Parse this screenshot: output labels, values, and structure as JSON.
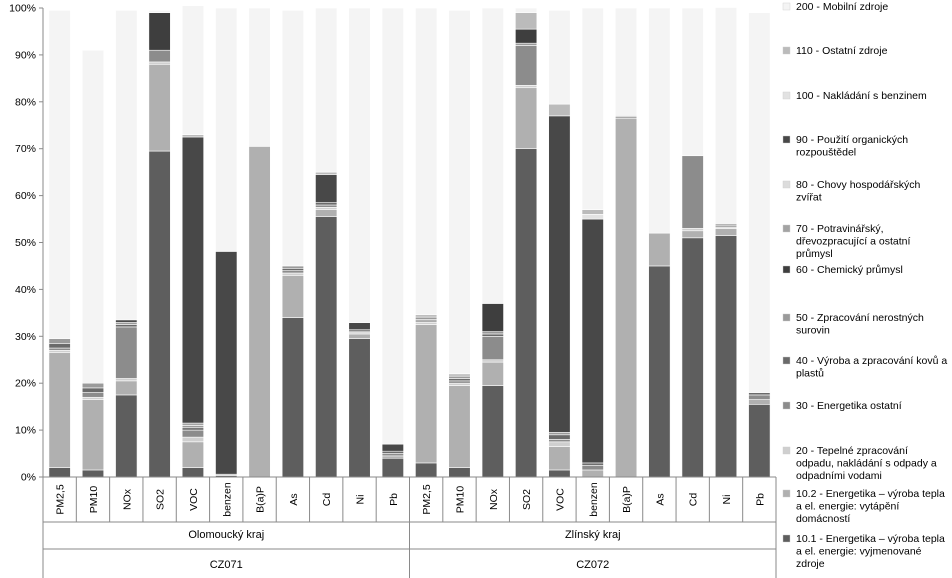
{
  "chart_data": {
    "type": "bar",
    "stacked": true,
    "ylim": [
      0,
      100
    ],
    "y_ticks": [
      "0%",
      "10%",
      "20%",
      "30%",
      "40%",
      "50%",
      "60%",
      "70%",
      "80%",
      "90%",
      "100%"
    ],
    "grid": false,
    "legend_placement": "right",
    "groups": [
      {
        "name": "Olomoucký kraj",
        "code": "CZ071",
        "categories": [
          "PM2,5",
          "PM10",
          "NOx",
          "SO2",
          "VOC",
          "benzen",
          "B(a)P",
          "As",
          "Cd",
          "Ni",
          "Pb"
        ]
      },
      {
        "name": "Zlínský kraj",
        "code": "CZ072",
        "categories": [
          "PM2,5",
          "PM10",
          "NOx",
          "SO2",
          "VOC",
          "benzen",
          "B(a)P",
          "As",
          "Cd",
          "Ni",
          "Pb"
        ]
      }
    ],
    "series": [
      {
        "name": "10.1 - Energetika – výroba tepla a el. energie: vyjmenované zdroje",
        "color": "#5e5e5e",
        "values": [
          2,
          1.5,
          17.5,
          69.5,
          2,
          0.3,
          0,
          34,
          55.5,
          29.5,
          4,
          3,
          2,
          19.5,
          70,
          1.5,
          0,
          0,
          45,
          51,
          51.5,
          15.5
        ]
      },
      {
        "name": "10.2 - Energetika – výroba tepla a el. energie: vytápění domácností",
        "color": "#b0b0b0",
        "values": [
          24.5,
          15,
          3,
          18.5,
          5.5,
          0.3,
          70.5,
          9,
          1.5,
          1,
          0.5,
          29.5,
          17.5,
          5,
          13,
          5,
          1.5,
          76.5,
          7,
          1.5,
          1.5,
          1
        ]
      },
      {
        "name": "20 - Tepelné zpracování odpadu, nakládání s odpady a odpadními vodami",
        "color": "#cfcfcf",
        "values": [
          0.5,
          0.5,
          0.5,
          0.5,
          1,
          0,
          0,
          0.5,
          0.5,
          0.3,
          0,
          0.5,
          0.5,
          0.5,
          0.5,
          1,
          0,
          0,
          0,
          0.5,
          0.3,
          0
        ]
      },
      {
        "name": "30 - Energetika ostatní",
        "color": "#8c8c8c",
        "values": [
          0.5,
          1,
          11,
          2.5,
          1.5,
          0,
          0,
          0.5,
          0.5,
          0.3,
          0.5,
          0.3,
          0.5,
          5,
          8.5,
          0.5,
          1,
          0.3,
          0,
          15.5,
          0.3,
          1
        ]
      },
      {
        "name": "40 - Výroba a zpracování kovů a plastů",
        "color": "#6a6a6a",
        "values": [
          1,
          1,
          0.5,
          0,
          0.5,
          0,
          0,
          0.5,
          0.5,
          0.3,
          0.5,
          0.3,
          0.5,
          0.5,
          0,
          1,
          0.5,
          0,
          0,
          0,
          0.3,
          0.5
        ]
      },
      {
        "name": "50 - Zpracování nerostných surovin",
        "color": "#9a9a9a",
        "values": [
          1,
          1,
          0.5,
          0,
          0.5,
          0,
          0,
          0.5,
          0,
          0,
          0,
          0.5,
          0.5,
          0.5,
          0.5,
          0.5,
          0,
          0,
          0,
          0,
          0,
          0
        ]
      },
      {
        "name": "60 - Chemický průmysl",
        "color": "#3e3e3e",
        "values": [
          0,
          0,
          0.5,
          8,
          0,
          0,
          0,
          0,
          0,
          0,
          0,
          0,
          0,
          6,
          3,
          0,
          0,
          0,
          0,
          0,
          0,
          0
        ]
      },
      {
        "name": "70 - Potravinářský, dřevozpracující a ostatní průmysl",
        "color": "#a3a3a3",
        "values": [
          0,
          0,
          0,
          0,
          0.5,
          0,
          0,
          0,
          0,
          0,
          0,
          0,
          0,
          0,
          0,
          0,
          0,
          0,
          0,
          0,
          0,
          0
        ]
      },
      {
        "name": "80 - Chovy hospodářských zvířat",
        "color": "#dcdcdc",
        "values": [
          0,
          0,
          0,
          0,
          0,
          0,
          0,
          0,
          0,
          0,
          0,
          0,
          0,
          0,
          0,
          0,
          0,
          0,
          0,
          0,
          0,
          0
        ]
      },
      {
        "name": "90 - Použití organických rozpouštědel",
        "color": "#484848",
        "values": [
          0,
          0,
          0,
          0,
          61,
          47.5,
          0,
          0,
          6,
          1.5,
          1.5,
          0,
          0,
          0,
          0,
          67.5,
          52,
          0,
          0,
          0,
          0,
          0
        ]
      },
      {
        "name": "100 - Nakládání s benzinem",
        "color": "#e2e2e2",
        "values": [
          0,
          0,
          0,
          0,
          0,
          0,
          0,
          0,
          0,
          0,
          0,
          0,
          0,
          0,
          0,
          0,
          1,
          0,
          0,
          0,
          0,
          0
        ]
      },
      {
        "name": "110 - Ostatní zdroje",
        "color": "#bbbbbb",
        "values": [
          0,
          0,
          0,
          0,
          0.5,
          0,
          0,
          0,
          0.5,
          0,
          0,
          0.5,
          0.5,
          0,
          3.5,
          2.5,
          1,
          0.3,
          0,
          0,
          0,
          0
        ]
      },
      {
        "name": "200 - Mobilní zdroje",
        "color": "#f4f4f4",
        "values": [
          70,
          71,
          66,
          0.5,
          27.5,
          51.9,
          29.5,
          54.5,
          35,
          67.1,
          93,
          65.4,
          77.5,
          63,
          1,
          20,
          43,
          22.9,
          48,
          31.5,
          46.2,
          81
        ]
      }
    ]
  }
}
